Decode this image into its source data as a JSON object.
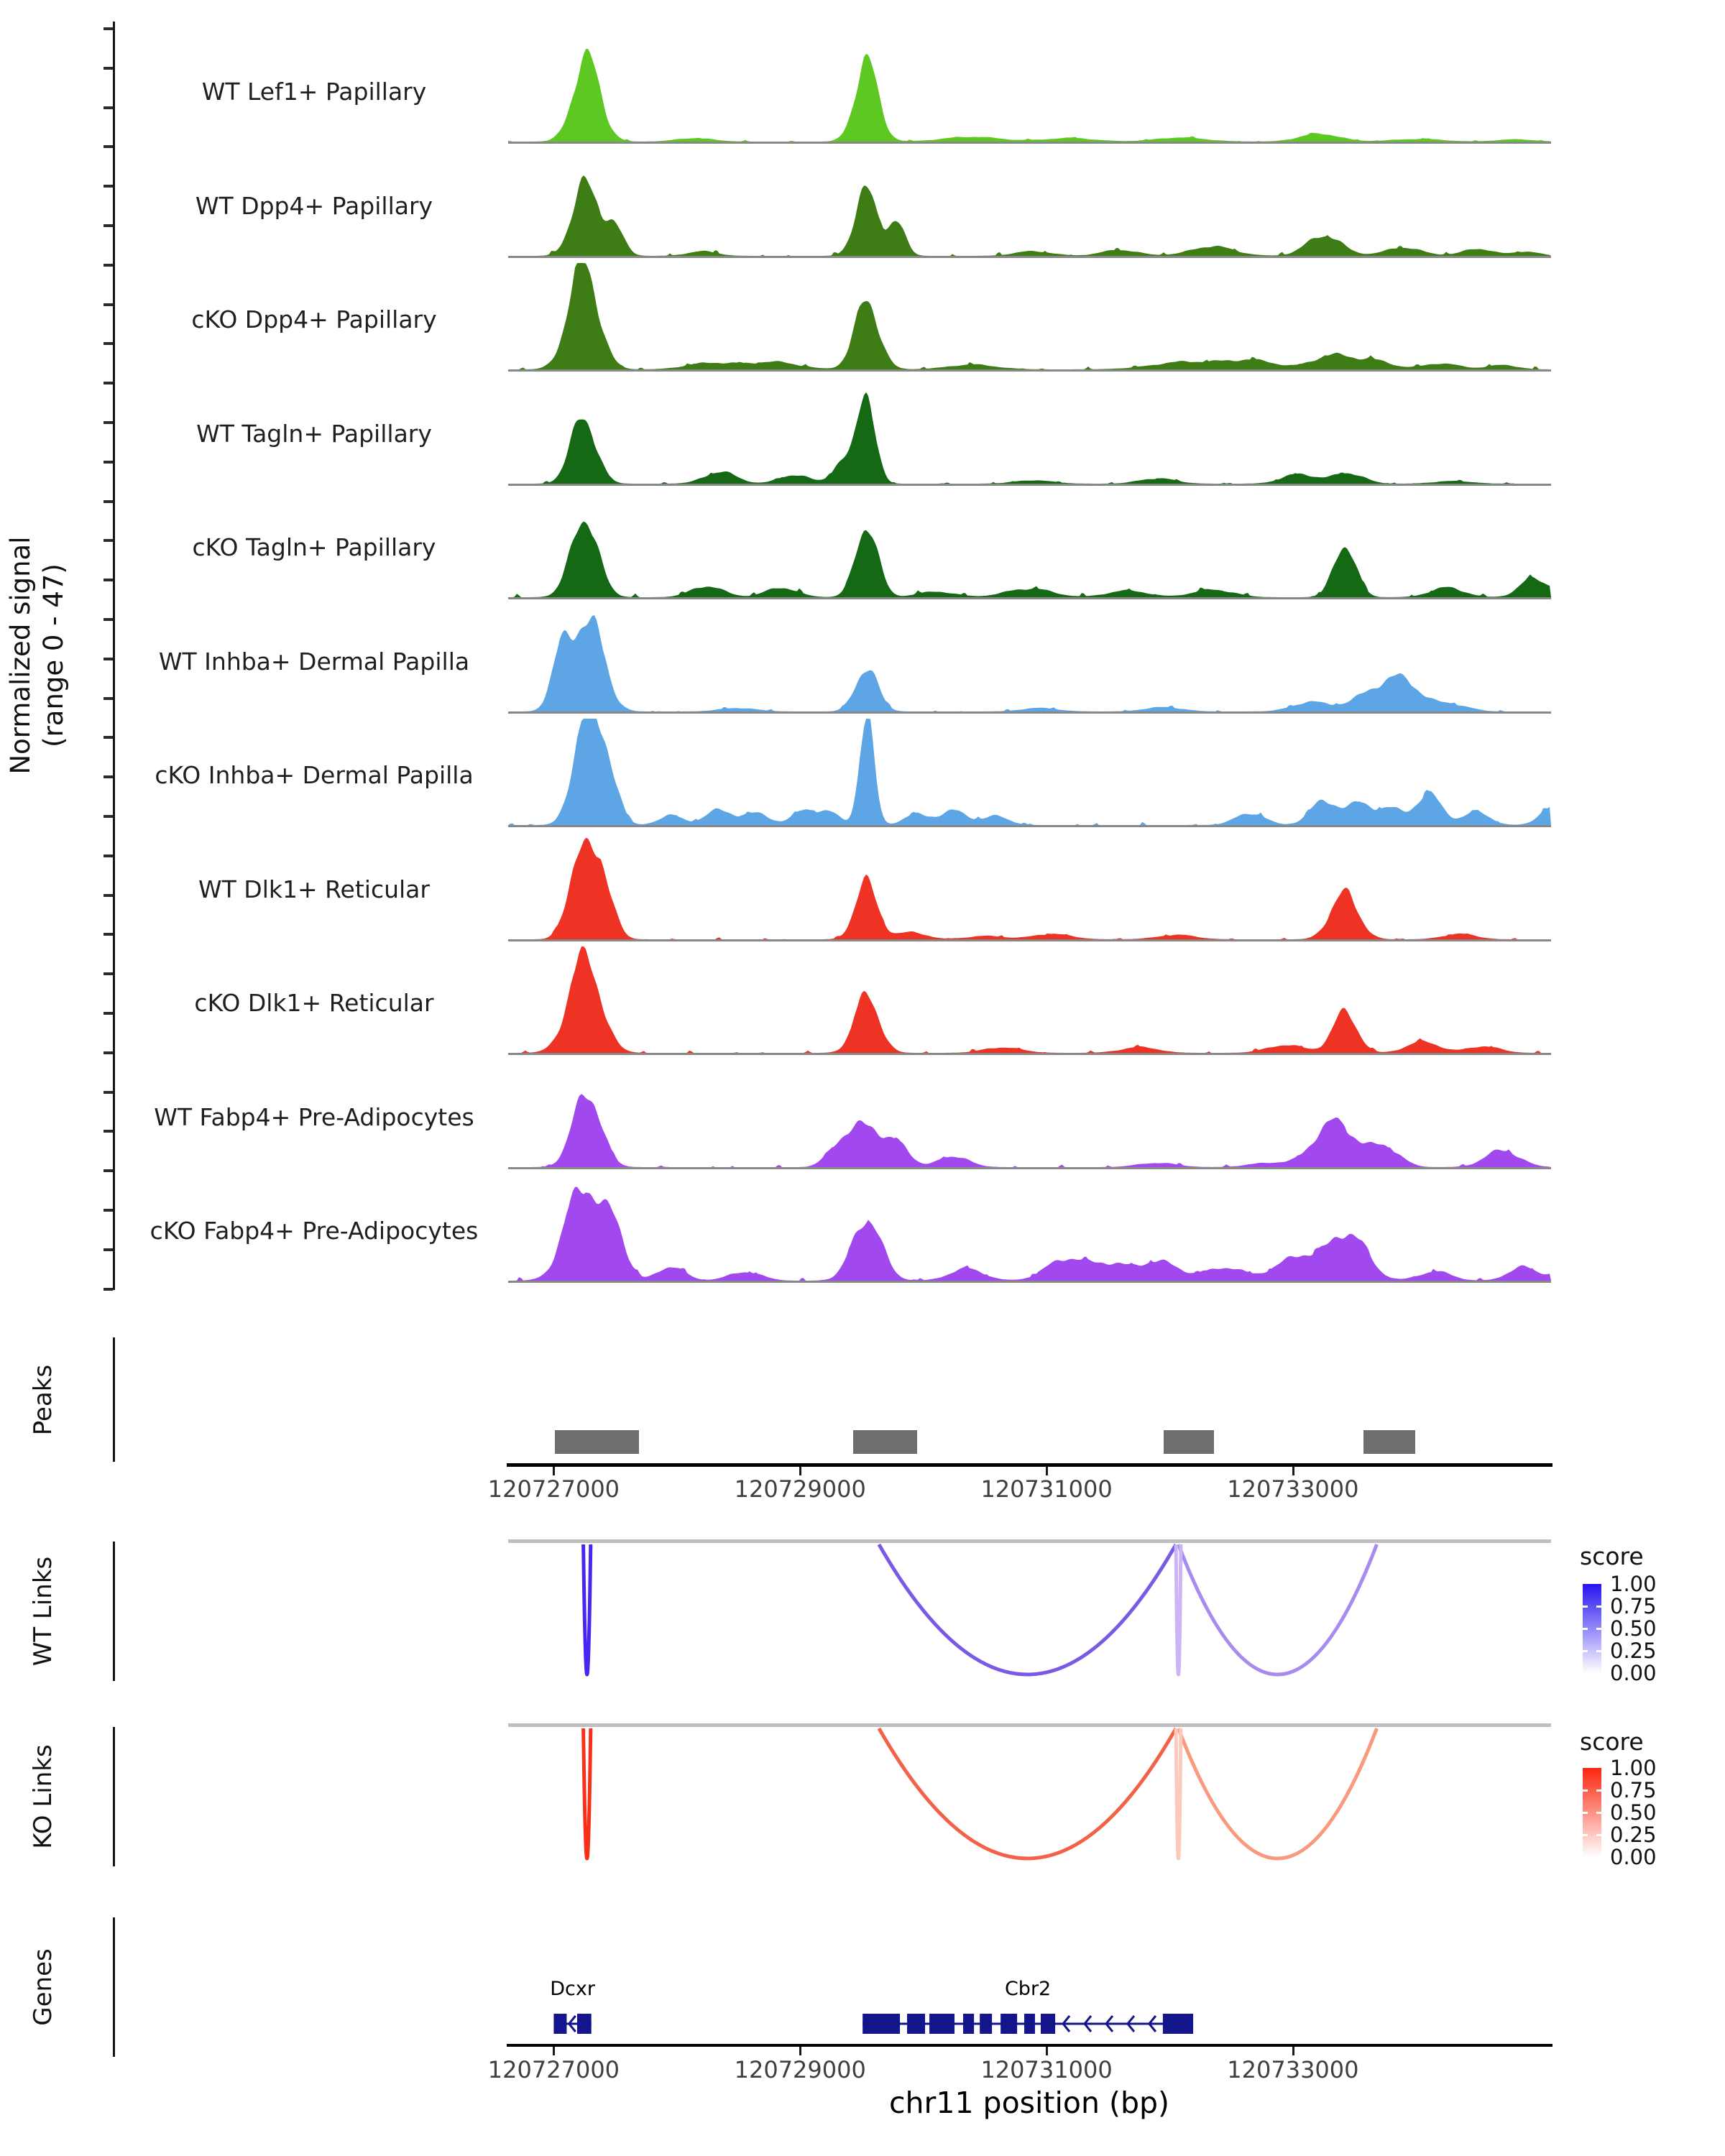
{
  "chart_data": {
    "type": "area",
    "subtype": "genome-coverage-tracks",
    "y_axis": {
      "label_line1": "Normalized signal",
      "label_line2": "(range 0 - 47)",
      "range_min": 0,
      "range_max": 47
    },
    "x_axis": {
      "title": "chr11 position (bp)",
      "chromosome": "chr11",
      "region_start": 120726630,
      "region_end": 120735095,
      "ticks": [
        {
          "pos": 120727000,
          "label": "120727000"
        },
        {
          "pos": 120729000,
          "label": "120729000"
        },
        {
          "pos": 120731000,
          "label": "120731000"
        },
        {
          "pos": 120733000,
          "label": "120733000"
        }
      ]
    },
    "tracks": [
      {
        "label": "WT Lef1+ Papillary",
        "color": "#5dc821",
        "seed": 1,
        "grass": 0.5,
        "peaks": [
          {
            "pos": 120727270,
            "sigma": 110,
            "h": 35
          },
          {
            "pos": 120729540,
            "sigma": 95,
            "h": 33
          },
          {
            "pos": 120728150,
            "sigma": 150,
            "h": 1.5
          },
          {
            "pos": 120730400,
            "sigma": 250,
            "h": 2
          },
          {
            "pos": 120731200,
            "sigma": 200,
            "h": 1.5
          },
          {
            "pos": 120732100,
            "sigma": 200,
            "h": 1.8
          },
          {
            "pos": 120733210,
            "sigma": 160,
            "h": 3.5
          },
          {
            "pos": 120734000,
            "sigma": 200,
            "h": 1.2
          },
          {
            "pos": 120734800,
            "sigma": 150,
            "h": 1
          }
        ]
      },
      {
        "label": "WT Dpp4+ Papillary",
        "color": "#3e7d15",
        "seed": 2,
        "grass": 1.0,
        "peaks": [
          {
            "pos": 120727250,
            "sigma": 100,
            "h": 33
          },
          {
            "pos": 120727480,
            "sigma": 80,
            "h": 13
          },
          {
            "pos": 120729540,
            "sigma": 90,
            "h": 30
          },
          {
            "pos": 120729780,
            "sigma": 70,
            "h": 14
          },
          {
            "pos": 120728200,
            "sigma": 120,
            "h": 2
          },
          {
            "pos": 120730900,
            "sigma": 150,
            "h": 2
          },
          {
            "pos": 120731600,
            "sigma": 150,
            "h": 2.5
          },
          {
            "pos": 120732350,
            "sigma": 180,
            "h": 4
          },
          {
            "pos": 120733260,
            "sigma": 140,
            "h": 9
          },
          {
            "pos": 120733900,
            "sigma": 150,
            "h": 3.5
          },
          {
            "pos": 120734500,
            "sigma": 130,
            "h": 3
          },
          {
            "pos": 120734900,
            "sigma": 100,
            "h": 2
          }
        ]
      },
      {
        "label": "cKO Dpp4+ Papillary",
        "color": "#3e7d15",
        "seed": 3,
        "grass": 1.0,
        "peaks": [
          {
            "pos": 120727240,
            "sigma": 120,
            "h": 44
          },
          {
            "pos": 120729540,
            "sigma": 100,
            "h": 28
          },
          {
            "pos": 120728300,
            "sigma": 200,
            "h": 3
          },
          {
            "pos": 120728800,
            "sigma": 200,
            "h": 3
          },
          {
            "pos": 120730400,
            "sigma": 200,
            "h": 2
          },
          {
            "pos": 120732200,
            "sigma": 300,
            "h": 3.5
          },
          {
            "pos": 120732700,
            "sigma": 200,
            "h": 3
          },
          {
            "pos": 120733300,
            "sigma": 150,
            "h": 6
          },
          {
            "pos": 120733650,
            "sigma": 150,
            "h": 4
          },
          {
            "pos": 120734200,
            "sigma": 150,
            "h": 2.5
          },
          {
            "pos": 120734700,
            "sigma": 120,
            "h": 2
          }
        ]
      },
      {
        "label": "WT Tagln+ Papillary",
        "color": "#156915",
        "seed": 4,
        "grass": 0.7,
        "peaks": [
          {
            "pos": 120727240,
            "sigma": 100,
            "h": 31
          },
          {
            "pos": 120729540,
            "sigma": 70,
            "h": 43
          },
          {
            "pos": 120729350,
            "sigma": 80,
            "h": 10
          },
          {
            "pos": 120728350,
            "sigma": 130,
            "h": 5
          },
          {
            "pos": 120728950,
            "sigma": 120,
            "h": 4
          },
          {
            "pos": 120730900,
            "sigma": 150,
            "h": 1.5
          },
          {
            "pos": 120731900,
            "sigma": 140,
            "h": 2.5
          },
          {
            "pos": 120733050,
            "sigma": 140,
            "h": 4
          },
          {
            "pos": 120733450,
            "sigma": 120,
            "h": 5
          },
          {
            "pos": 120734300,
            "sigma": 150,
            "h": 1.2
          }
        ]
      },
      {
        "label": "cKO Tagln+ Papillary",
        "color": "#156915",
        "seed": 5,
        "grass": 1.2,
        "peaks": [
          {
            "pos": 120727250,
            "sigma": 110,
            "h": 33
          },
          {
            "pos": 120729540,
            "sigma": 90,
            "h": 30
          },
          {
            "pos": 120728250,
            "sigma": 130,
            "h": 5
          },
          {
            "pos": 120728850,
            "sigma": 130,
            "h": 4
          },
          {
            "pos": 120730100,
            "sigma": 150,
            "h": 2.5
          },
          {
            "pos": 120730850,
            "sigma": 180,
            "h": 4
          },
          {
            "pos": 120731650,
            "sigma": 160,
            "h": 3
          },
          {
            "pos": 120732350,
            "sigma": 160,
            "h": 3.5
          },
          {
            "pos": 120733420,
            "sigma": 90,
            "h": 22
          },
          {
            "pos": 120734250,
            "sigma": 140,
            "h": 4
          },
          {
            "pos": 120734950,
            "sigma": 110,
            "h": 8
          },
          {
            "pos": 120735250,
            "sigma": 100,
            "h": 4
          }
        ]
      },
      {
        "label": "WT Inhba+ Dermal Papilla",
        "color": "#5ea5e5",
        "seed": 6,
        "grass": 0.7,
        "peaks": [
          {
            "pos": 120727280,
            "sigma": 120,
            "h": 43
          },
          {
            "pos": 120727060,
            "sigma": 80,
            "h": 22
          },
          {
            "pos": 120729540,
            "sigma": 90,
            "h": 20
          },
          {
            "pos": 120728500,
            "sigma": 150,
            "h": 1.5
          },
          {
            "pos": 120730950,
            "sigma": 150,
            "h": 1.5
          },
          {
            "pos": 120731950,
            "sigma": 150,
            "h": 2
          },
          {
            "pos": 120733150,
            "sigma": 150,
            "h": 4
          },
          {
            "pos": 120733550,
            "sigma": 130,
            "h": 4
          },
          {
            "pos": 120733850,
            "sigma": 180,
            "h": 14
          },
          {
            "pos": 120734300,
            "sigma": 130,
            "h": 3
          }
        ]
      },
      {
        "label": "cKO Inhba+ Dermal Papilla",
        "color": "#5ea5e5",
        "seed": 7,
        "grass": 1.3,
        "peaks": [
          {
            "pos": 120727260,
            "sigma": 100,
            "h": 47
          },
          {
            "pos": 120727450,
            "sigma": 80,
            "h": 24
          },
          {
            "pos": 120729540,
            "sigma": 60,
            "h": 44
          },
          {
            "pos": 120727950,
            "sigma": 100,
            "h": 4
          },
          {
            "pos": 120728350,
            "sigma": 110,
            "h": 7
          },
          {
            "pos": 120728650,
            "sigma": 100,
            "h": 5
          },
          {
            "pos": 120729050,
            "sigma": 100,
            "h": 7
          },
          {
            "pos": 120729250,
            "sigma": 80,
            "h": 5
          },
          {
            "pos": 120729950,
            "sigma": 100,
            "h": 5
          },
          {
            "pos": 120730250,
            "sigma": 110,
            "h": 6
          },
          {
            "pos": 120730600,
            "sigma": 100,
            "h": 4
          },
          {
            "pos": 120732650,
            "sigma": 120,
            "h": 5
          },
          {
            "pos": 120733250,
            "sigma": 110,
            "h": 11
          },
          {
            "pos": 120733550,
            "sigma": 100,
            "h": 9
          },
          {
            "pos": 120733800,
            "sigma": 100,
            "h": 7
          },
          {
            "pos": 120734100,
            "sigma": 110,
            "h": 13
          },
          {
            "pos": 120734500,
            "sigma": 100,
            "h": 6
          },
          {
            "pos": 120735100,
            "sigma": 100,
            "h": 7
          }
        ]
      },
      {
        "label": "WT Dlk1+ Reticular",
        "color": "#ee3223",
        "seed": 8,
        "grass": 0.7,
        "peaks": [
          {
            "pos": 120727200,
            "sigma": 90,
            "h": 35
          },
          {
            "pos": 120727380,
            "sigma": 90,
            "h": 32
          },
          {
            "pos": 120729540,
            "sigma": 90,
            "h": 26
          },
          {
            "pos": 120729900,
            "sigma": 120,
            "h": 3
          },
          {
            "pos": 120730500,
            "sigma": 150,
            "h": 1.5
          },
          {
            "pos": 120731050,
            "sigma": 150,
            "h": 2.5
          },
          {
            "pos": 120732050,
            "sigma": 150,
            "h": 2
          },
          {
            "pos": 120733420,
            "sigma": 110,
            "h": 21
          },
          {
            "pos": 120734350,
            "sigma": 130,
            "h": 2.5
          }
        ]
      },
      {
        "label": "cKO Dlk1+ Reticular",
        "color": "#ee3223",
        "seed": 9,
        "grass": 0.8,
        "peaks": [
          {
            "pos": 120727250,
            "sigma": 130,
            "h": 40
          },
          {
            "pos": 120729540,
            "sigma": 100,
            "h": 24
          },
          {
            "pos": 120730650,
            "sigma": 150,
            "h": 2.5
          },
          {
            "pos": 120731750,
            "sigma": 150,
            "h": 2.5
          },
          {
            "pos": 120732950,
            "sigma": 150,
            "h": 3.5
          },
          {
            "pos": 120733420,
            "sigma": 100,
            "h": 17
          },
          {
            "pos": 120734050,
            "sigma": 130,
            "h": 5
          },
          {
            "pos": 120734550,
            "sigma": 130,
            "h": 3
          }
        ]
      },
      {
        "label": "WT Fabp4+ Pre-Adipocytes",
        "color": "#a148ee",
        "seed": 10,
        "grass": 0.9,
        "peaks": [
          {
            "pos": 120727270,
            "sigma": 110,
            "h": 35
          },
          {
            "pos": 120729540,
            "sigma": 110,
            "h": 21
          },
          {
            "pos": 120729300,
            "sigma": 90,
            "h": 9
          },
          {
            "pos": 120729800,
            "sigma": 90,
            "h": 10
          },
          {
            "pos": 120730250,
            "sigma": 120,
            "h": 5
          },
          {
            "pos": 120731900,
            "sigma": 150,
            "h": 2
          },
          {
            "pos": 120732800,
            "sigma": 150,
            "h": 2
          },
          {
            "pos": 120733350,
            "sigma": 170,
            "h": 20
          },
          {
            "pos": 120733750,
            "sigma": 120,
            "h": 8
          },
          {
            "pos": 120734700,
            "sigma": 140,
            "h": 7
          }
        ]
      },
      {
        "label": "cKO Fabp4+ Pre-Adipocytes",
        "color": "#a148ee",
        "seed": 11,
        "grass": 1.4,
        "peaks": [
          {
            "pos": 120727230,
            "sigma": 140,
            "h": 40
          },
          {
            "pos": 120727500,
            "sigma": 90,
            "h": 22
          },
          {
            "pos": 120727950,
            "sigma": 110,
            "h": 6
          },
          {
            "pos": 120728550,
            "sigma": 130,
            "h": 4
          },
          {
            "pos": 120729540,
            "sigma": 120,
            "h": 26
          },
          {
            "pos": 120730350,
            "sigma": 140,
            "h": 5
          },
          {
            "pos": 120731150,
            "sigma": 160,
            "h": 9
          },
          {
            "pos": 120731500,
            "sigma": 140,
            "h": 7
          },
          {
            "pos": 120731900,
            "sigma": 180,
            "h": 8
          },
          {
            "pos": 120732450,
            "sigma": 150,
            "h": 6
          },
          {
            "pos": 120732950,
            "sigma": 140,
            "h": 7
          },
          {
            "pos": 120733150,
            "sigma": 120,
            "h": 8
          },
          {
            "pos": 120733450,
            "sigma": 150,
            "h": 20
          },
          {
            "pos": 120734150,
            "sigma": 130,
            "h": 4
          },
          {
            "pos": 120734850,
            "sigma": 110,
            "h": 6
          },
          {
            "pos": 120735200,
            "sigma": 120,
            "h": 4
          }
        ]
      }
    ],
    "peaks_track": {
      "label": "Peaks",
      "color": "#6e6e6e",
      "intervals": [
        {
          "start": 120727010,
          "end": 120727690
        },
        {
          "start": 120729430,
          "end": 120729950
        },
        {
          "start": 120731950,
          "end": 120732360
        },
        {
          "start": 120733570,
          "end": 120733990
        }
      ]
    },
    "wt_links": {
      "label": "WT Links",
      "legend_title": "score",
      "legend_ticks": [
        "1.00",
        "0.75",
        "0.50",
        "0.25",
        "0.00"
      ],
      "color_high": "#2613f0",
      "links": [
        {
          "start": 120727240,
          "end": 120727300,
          "score": 0.93,
          "color": "#4527f2"
        },
        {
          "start": 120729640,
          "end": 120732050,
          "score": 0.62,
          "color": "#7a5ae4"
        },
        {
          "start": 120732050,
          "end": 120732090,
          "score": 0.24,
          "color": "#ccb5f4"
        },
        {
          "start": 120732070,
          "end": 120733680,
          "score": 0.43,
          "color": "#a78bee"
        }
      ]
    },
    "ko_links": {
      "label": "KO Links",
      "legend_title": "score",
      "legend_ticks": [
        "1.00",
        "0.75",
        "0.50",
        "0.25",
        "0.00"
      ],
      "color_high": "#fb250d",
      "links": [
        {
          "start": 120727240,
          "end": 120727300,
          "score": 0.95,
          "color": "#f93018"
        },
        {
          "start": 120729640,
          "end": 120732050,
          "score": 0.68,
          "color": "#f26148"
        },
        {
          "start": 120732050,
          "end": 120732090,
          "score": 0.28,
          "color": "#fccaba"
        },
        {
          "start": 120732070,
          "end": 120733680,
          "score": 0.5,
          "color": "#f9997e"
        }
      ]
    },
    "genes_track": {
      "label": "Genes",
      "color": "#14148c",
      "genes": [
        {
          "name": "Dcxr",
          "strand": "-",
          "start": 120727000,
          "end": 120727305,
          "exons": [
            [
              120727000,
              120727105
            ],
            [
              120727190,
              120727305
            ]
          ]
        },
        {
          "name": "Cbr2",
          "strand": "-",
          "start": 120729507,
          "end": 120732190,
          "exons": [
            [
              120729507,
              120729810
            ],
            [
              120729868,
              120730014
            ],
            [
              120730049,
              120730253
            ],
            [
              120730323,
              120730411
            ],
            [
              120730458,
              120730557
            ],
            [
              120730627,
              120730761
            ],
            [
              120730819,
              120730906
            ],
            [
              120730953,
              120731070
            ],
            [
              120731944,
              120732190
            ]
          ]
        }
      ]
    }
  }
}
